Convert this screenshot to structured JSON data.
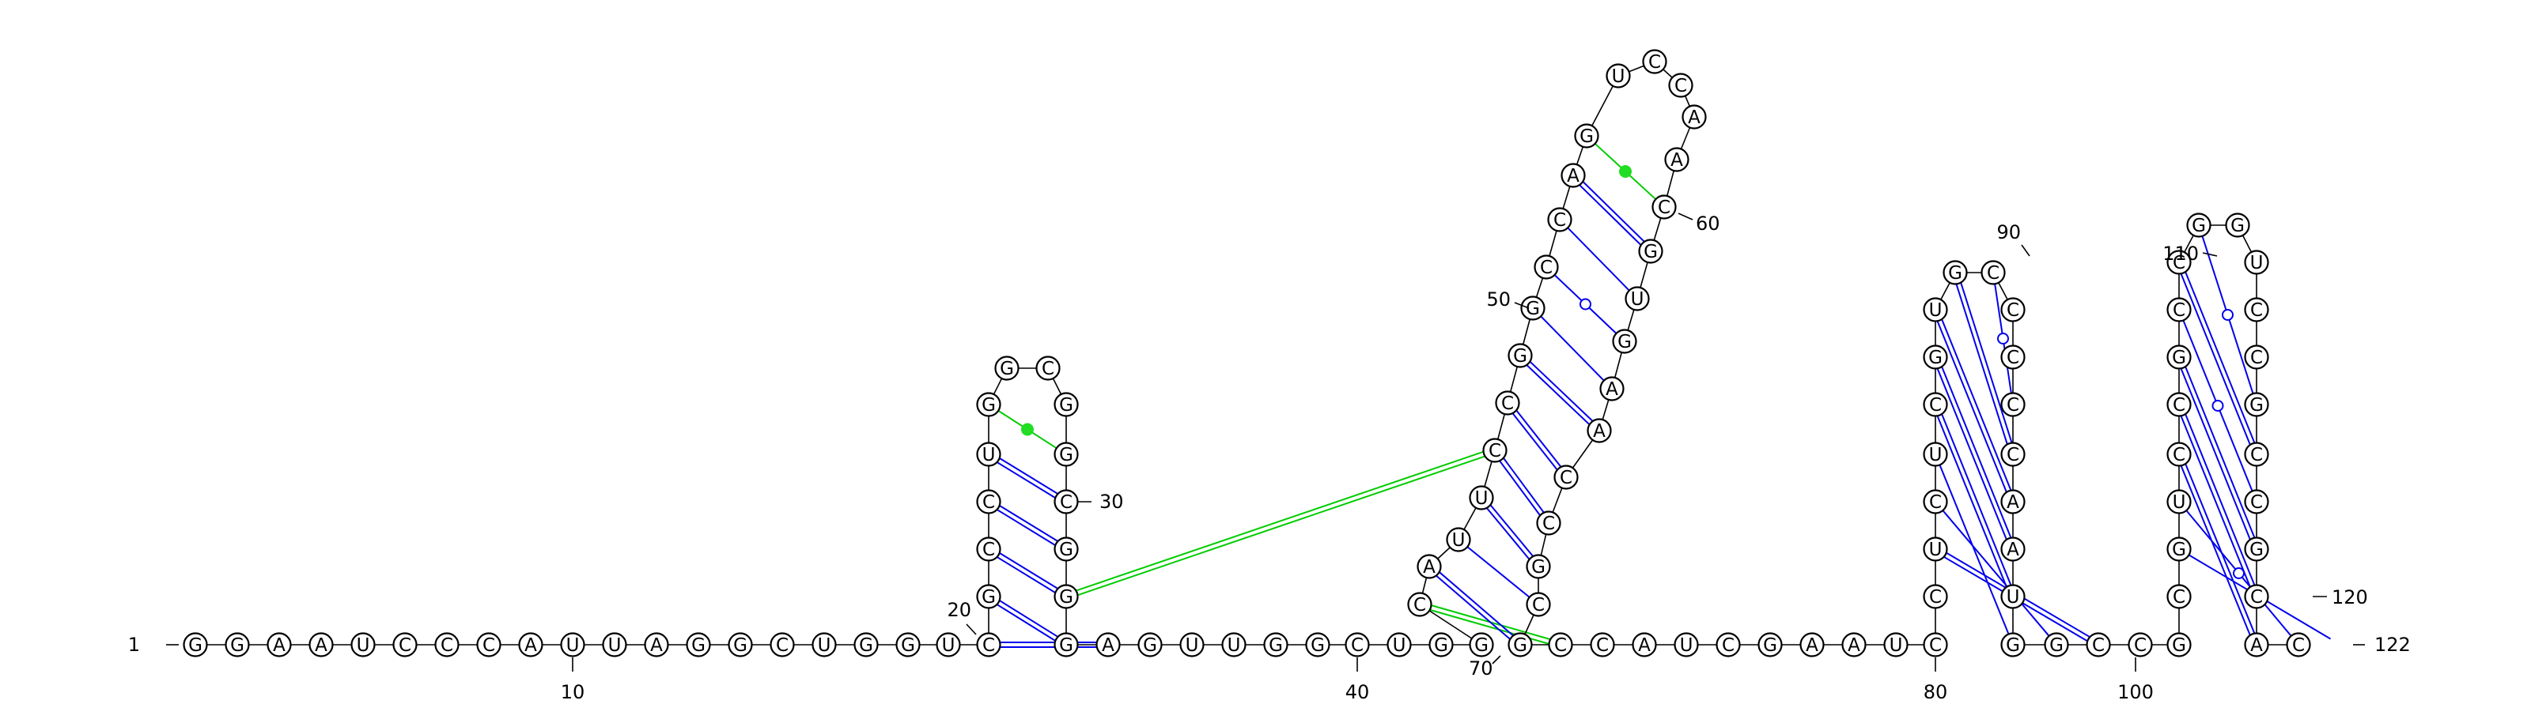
{
  "diagram": {
    "type": "rna-secondary-structure",
    "length": 122,
    "sequence": "GGAAUCCCAUUAGGCUGGUCGCCUGGCGGCGGGAGUUGGCUGGCAUUCCGGCCAGUCCAACGUGAACCGCGCCAUCGAAUCCUCUCGUGCCCCCAAUGGCCGCGUCCGCCGGUCCGCCGCAC",
    "start_label": "1",
    "end_label": "122",
    "number_labels": [
      "10",
      "20",
      "30",
      "40",
      "50",
      "60",
      "70",
      "80",
      "90",
      "100",
      "110",
      "120"
    ],
    "colors": {
      "canonical_pair": "#0000ee",
      "noncanonical_pair": "#00cc00",
      "green_dot": "#22dd22",
      "backbone": "#000000"
    },
    "pairs": [
      [
        20,
        31,
        "wc"
      ],
      [
        21,
        30,
        "wc"
      ],
      [
        22,
        29,
        "wc"
      ],
      [
        23,
        28,
        "wc"
      ],
      [
        24,
        27,
        "wc"
      ],
      [
        25,
        26,
        "green-dot"
      ],
      [
        30,
        68,
        "green-long"
      ],
      [
        44,
        71,
        "green-double"
      ],
      [
        45,
        70,
        "wc"
      ],
      [
        46,
        69,
        "wc"
      ],
      [
        47,
        67,
        "single"
      ],
      [
        48,
        66,
        "wc"
      ],
      [
        49,
        65,
        "wc"
      ],
      [
        50,
        64,
        "wc"
      ],
      [
        51,
        63,
        "single"
      ],
      [
        52,
        62,
        "wc-circle"
      ],
      [
        53,
        61,
        "wc"
      ],
      [
        54,
        60,
        "single"
      ],
      [
        55,
        59,
        "green-dot"
      ],
      [
        81,
        94,
        "wc"
      ],
      [
        82,
        93,
        "single"
      ],
      [
        83,
        92,
        "single"
      ],
      [
        84,
        91,
        "wc"
      ],
      [
        85,
        90,
        "wc"
      ],
      [
        86,
        89,
        "wc"
      ],
      [
        87,
        88,
        "wc-circle"
      ],
      [
        102,
        121,
        "single"
      ],
      [
        103,
        120,
        "single"
      ],
      [
        104,
        119,
        "wc-circle"
      ],
      [
        105,
        118,
        "wc"
      ],
      [
        106,
        117,
        "wc"
      ],
      [
        107,
        116,
        "wc"
      ],
      [
        108,
        115,
        "wc-circle"
      ],
      [
        109,
        114,
        "wc"
      ],
      [
        110,
        113,
        "wc-circle"
      ]
    ]
  }
}
